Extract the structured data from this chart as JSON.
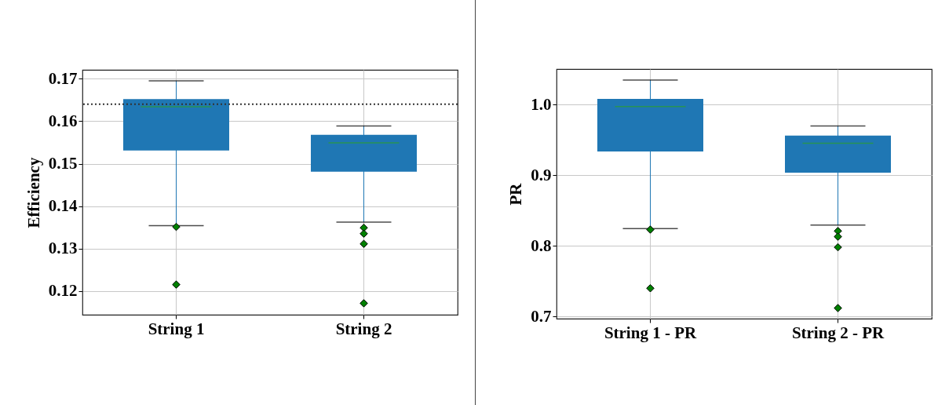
{
  "chart_data": [
    {
      "type": "box",
      "categories": [
        "String 1",
        "String 2"
      ],
      "ylabel": "Efficiency",
      "ylim": [
        0.1144,
        0.1721
      ],
      "yticks": [
        0.12,
        0.13,
        0.14,
        0.15,
        0.16,
        0.17
      ],
      "grid": true,
      "marker": "diamond",
      "series": [
        {
          "color": "#1f77b4",
          "boxes": [
            {
              "low": 0.1354,
              "q1": 0.1531,
              "median": 0.1634,
              "q3": 0.1652,
              "high": 0.1695,
              "outliers": [
                0.1351,
                0.1215
              ]
            },
            {
              "low": 0.1362,
              "q1": 0.1481,
              "median": 0.1549,
              "q3": 0.1568,
              "high": 0.1589,
              "outliers": [
                0.1349,
                0.1335,
                0.1311,
                0.1171
              ]
            }
          ]
        }
      ],
      "ref_lines": [
        {
          "axis": "y",
          "value": 0.164,
          "color": "#333333",
          "line_style": "dotted"
        }
      ]
    },
    {
      "type": "box",
      "categories": [
        "String 1 - PR",
        "String 2 - PR"
      ],
      "ylabel": "PR",
      "ylim": [
        0.697,
        1.05
      ],
      "yticks": [
        {
          "value": 0.7,
          "label": "0.7"
        },
        {
          "value": 0.8,
          "label": "0.8"
        },
        {
          "value": 0.9,
          "label": "0.9"
        },
        {
          "value": 1.0,
          "label": "1.0"
        }
      ],
      "grid": true,
      "marker": "diamond",
      "series": [
        {
          "color": "#1f77b4",
          "boxes": [
            {
              "low": 0.8245,
              "q1": 0.9334,
              "median": 0.997,
              "q3": 1.0079,
              "high": 1.0344,
              "outliers": [
                0.823,
                0.74
              ]
            },
            {
              "low": 0.8294,
              "q1": 0.9035,
              "median": 0.945,
              "q3": 0.956,
              "high": 0.9694,
              "outliers": [
                0.821,
                0.813,
                0.798,
                0.712
              ]
            }
          ]
        }
      ]
    }
  ]
}
